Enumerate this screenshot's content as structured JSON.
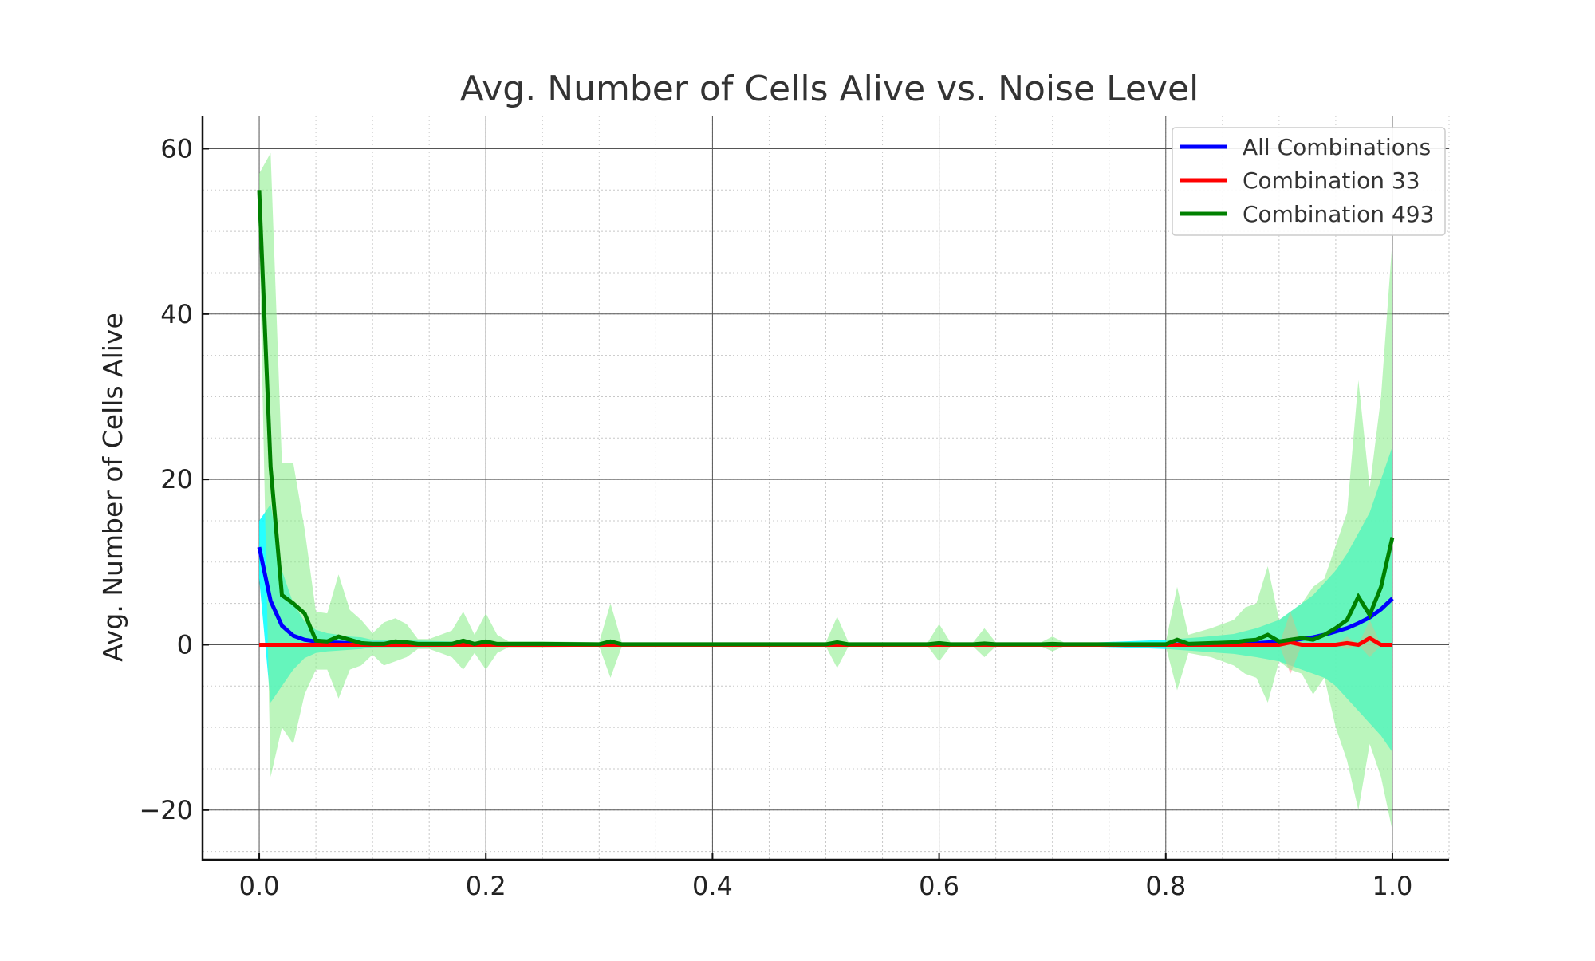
{
  "chart_data": {
    "type": "line",
    "title": "Avg. Number of Cells Alive vs. Noise Level",
    "xlabel": "",
    "ylabel": "Avg. Number of Cells Alive",
    "xlim": [
      -0.05,
      1.05
    ],
    "ylim": [
      -26,
      64
    ],
    "x_ticks": [
      0.0,
      0.2,
      0.4,
      0.6,
      0.8,
      1.0
    ],
    "x_tick_labels": [
      "0.0",
      "0.2",
      "0.4",
      "0.6",
      "0.8",
      "1.0"
    ],
    "y_ticks": [
      -20,
      0,
      20,
      40,
      60
    ],
    "y_tick_labels": [
      "−20",
      "0",
      "20",
      "40",
      "60"
    ],
    "grid": true,
    "legend_position": "top-right",
    "series": [
      {
        "name": "All Combinations",
        "color": "#0000ff",
        "band_color": "#00ffff",
        "x": [
          0.0,
          0.01,
          0.02,
          0.03,
          0.04,
          0.05,
          0.06,
          0.07,
          0.08,
          0.09,
          0.1,
          0.12,
          0.14,
          0.2,
          0.3,
          0.5,
          0.7,
          0.8,
          0.83,
          0.86,
          0.88,
          0.9,
          0.91,
          0.92,
          0.93,
          0.94,
          0.95,
          0.96,
          0.97,
          0.98,
          0.99,
          1.0
        ],
        "y": [
          11.8,
          5.3,
          2.3,
          1.1,
          0.6,
          0.4,
          0.3,
          0.25,
          0.2,
          0.15,
          0.1,
          0.1,
          0.08,
          0.05,
          0.02,
          0.01,
          0.01,
          0.03,
          0.05,
          0.1,
          0.2,
          0.35,
          0.5,
          0.7,
          0.9,
          1.2,
          1.6,
          2.0,
          2.6,
          3.3,
          4.3,
          5.6
        ],
        "lower": [
          8.0,
          -7.0,
          -5.0,
          -3.0,
          -1.6,
          -1.0,
          -0.8,
          -0.7,
          -0.6,
          -0.5,
          -0.3,
          -0.3,
          -0.3,
          -0.2,
          -0.1,
          -0.05,
          -0.05,
          -0.5,
          -0.8,
          -1.1,
          -1.5,
          -2.0,
          -2.5,
          -3.0,
          -3.5,
          -4.0,
          -5.0,
          -6.5,
          -8.0,
          -9.5,
          -11.0,
          -13.0
        ],
        "upper": [
          15.0,
          17.0,
          9.0,
          5.0,
          2.8,
          1.8,
          1.4,
          1.2,
          1.0,
          0.9,
          0.6,
          0.6,
          0.5,
          0.3,
          0.15,
          0.07,
          0.07,
          0.6,
          0.9,
          1.3,
          2.0,
          3.0,
          4.0,
          5.0,
          6.0,
          7.5,
          9.0,
          11.0,
          13.5,
          16.0,
          20.0,
          24.0
        ]
      },
      {
        "name": "Combination 33",
        "color": "#ff0000",
        "band_color": "#ff9999",
        "x": [
          0.0,
          0.1,
          0.2,
          0.3,
          0.4,
          0.5,
          0.6,
          0.7,
          0.8,
          0.9,
          0.91,
          0.92,
          0.93,
          0.94,
          0.95,
          0.96,
          0.97,
          0.98,
          0.99,
          1.0
        ],
        "y": [
          0,
          0,
          0,
          0,
          0,
          0,
          0,
          0,
          0,
          0,
          0.3,
          0,
          0,
          0,
          0,
          0.2,
          0,
          0.8,
          0,
          0
        ],
        "lower": [
          0,
          0,
          0,
          0,
          0,
          0,
          0,
          0,
          0,
          0,
          -3.5,
          0,
          0,
          0,
          0,
          -0.5,
          0,
          -1.5,
          0,
          0
        ],
        "upper": [
          0,
          0,
          0,
          0,
          0,
          0,
          0,
          0,
          0,
          0,
          4.0,
          0,
          0,
          0,
          0,
          1.0,
          0,
          3.0,
          0,
          0
        ]
      },
      {
        "name": "Combination 493",
        "color": "#008000",
        "band_color": "#90ee90",
        "x": [
          0.0,
          0.01,
          0.02,
          0.03,
          0.04,
          0.05,
          0.06,
          0.07,
          0.08,
          0.09,
          0.1,
          0.11,
          0.12,
          0.13,
          0.14,
          0.15,
          0.16,
          0.17,
          0.18,
          0.19,
          0.2,
          0.21,
          0.22,
          0.25,
          0.3,
          0.31,
          0.32,
          0.5,
          0.51,
          0.52,
          0.59,
          0.6,
          0.61,
          0.63,
          0.64,
          0.65,
          0.69,
          0.7,
          0.71,
          0.8,
          0.81,
          0.82,
          0.84,
          0.86,
          0.87,
          0.88,
          0.89,
          0.9,
          0.91,
          0.92,
          0.93,
          0.94,
          0.95,
          0.96,
          0.97,
          0.98,
          0.99,
          1.0
        ],
        "y": [
          55.0,
          21.5,
          6.0,
          5.0,
          3.8,
          0.5,
          0.4,
          1.0,
          0.6,
          0.2,
          0.1,
          0.1,
          0.4,
          0.3,
          0.1,
          0.1,
          0.1,
          0.1,
          0.5,
          0.1,
          0.4,
          0.1,
          0.1,
          0.1,
          0.05,
          0.4,
          0.05,
          0.05,
          0.3,
          0.05,
          0.05,
          0.2,
          0.05,
          0.05,
          0.15,
          0.05,
          0.05,
          0.1,
          0.05,
          0.05,
          0.6,
          0.1,
          0.2,
          0.3,
          0.5,
          0.6,
          1.2,
          0.4,
          0.6,
          0.8,
          0.6,
          1.2,
          2.0,
          3.0,
          5.8,
          3.6,
          7.0,
          13.0
        ],
        "lower": [
          50.0,
          -16.0,
          -10.0,
          -12.0,
          -6.0,
          -3.0,
          -3.0,
          -6.5,
          -3.0,
          -2.5,
          -1.2,
          -2.5,
          -2.0,
          -1.5,
          -0.5,
          -0.5,
          -1.0,
          -1.5,
          -3.0,
          -1.0,
          -3.0,
          -1.0,
          -0.3,
          -0.3,
          -0.2,
          -4.0,
          -0.2,
          -0.2,
          -2.8,
          -0.2,
          -0.2,
          -2.0,
          -0.2,
          -0.2,
          -1.5,
          -0.2,
          -0.2,
          -0.8,
          -0.2,
          -0.2,
          -5.5,
          -1.0,
          -1.5,
          -2.5,
          -3.5,
          -4.0,
          -7.0,
          -2.0,
          -3.0,
          -3.5,
          -6.0,
          -4.0,
          -10.0,
          -14.0,
          -20.0,
          -12.0,
          -16.0,
          -22.5
        ],
        "upper": [
          57.0,
          59.5,
          22.0,
          22.0,
          14.0,
          4.0,
          3.8,
          8.5,
          4.2,
          3.0,
          1.4,
          2.7,
          3.2,
          2.5,
          0.7,
          0.7,
          1.2,
          1.7,
          4.0,
          1.2,
          3.8,
          1.2,
          0.4,
          0.4,
          0.3,
          5.0,
          0.3,
          0.3,
          3.4,
          0.3,
          0.3,
          2.5,
          0.3,
          0.3,
          2.0,
          0.3,
          0.3,
          1.0,
          0.3,
          0.3,
          7.0,
          1.2,
          2.0,
          3.0,
          4.5,
          5.0,
          9.5,
          3.0,
          4.0,
          5.0,
          7.0,
          8.0,
          12.0,
          16.0,
          32.0,
          19.0,
          30.0,
          49.0
        ]
      }
    ]
  }
}
